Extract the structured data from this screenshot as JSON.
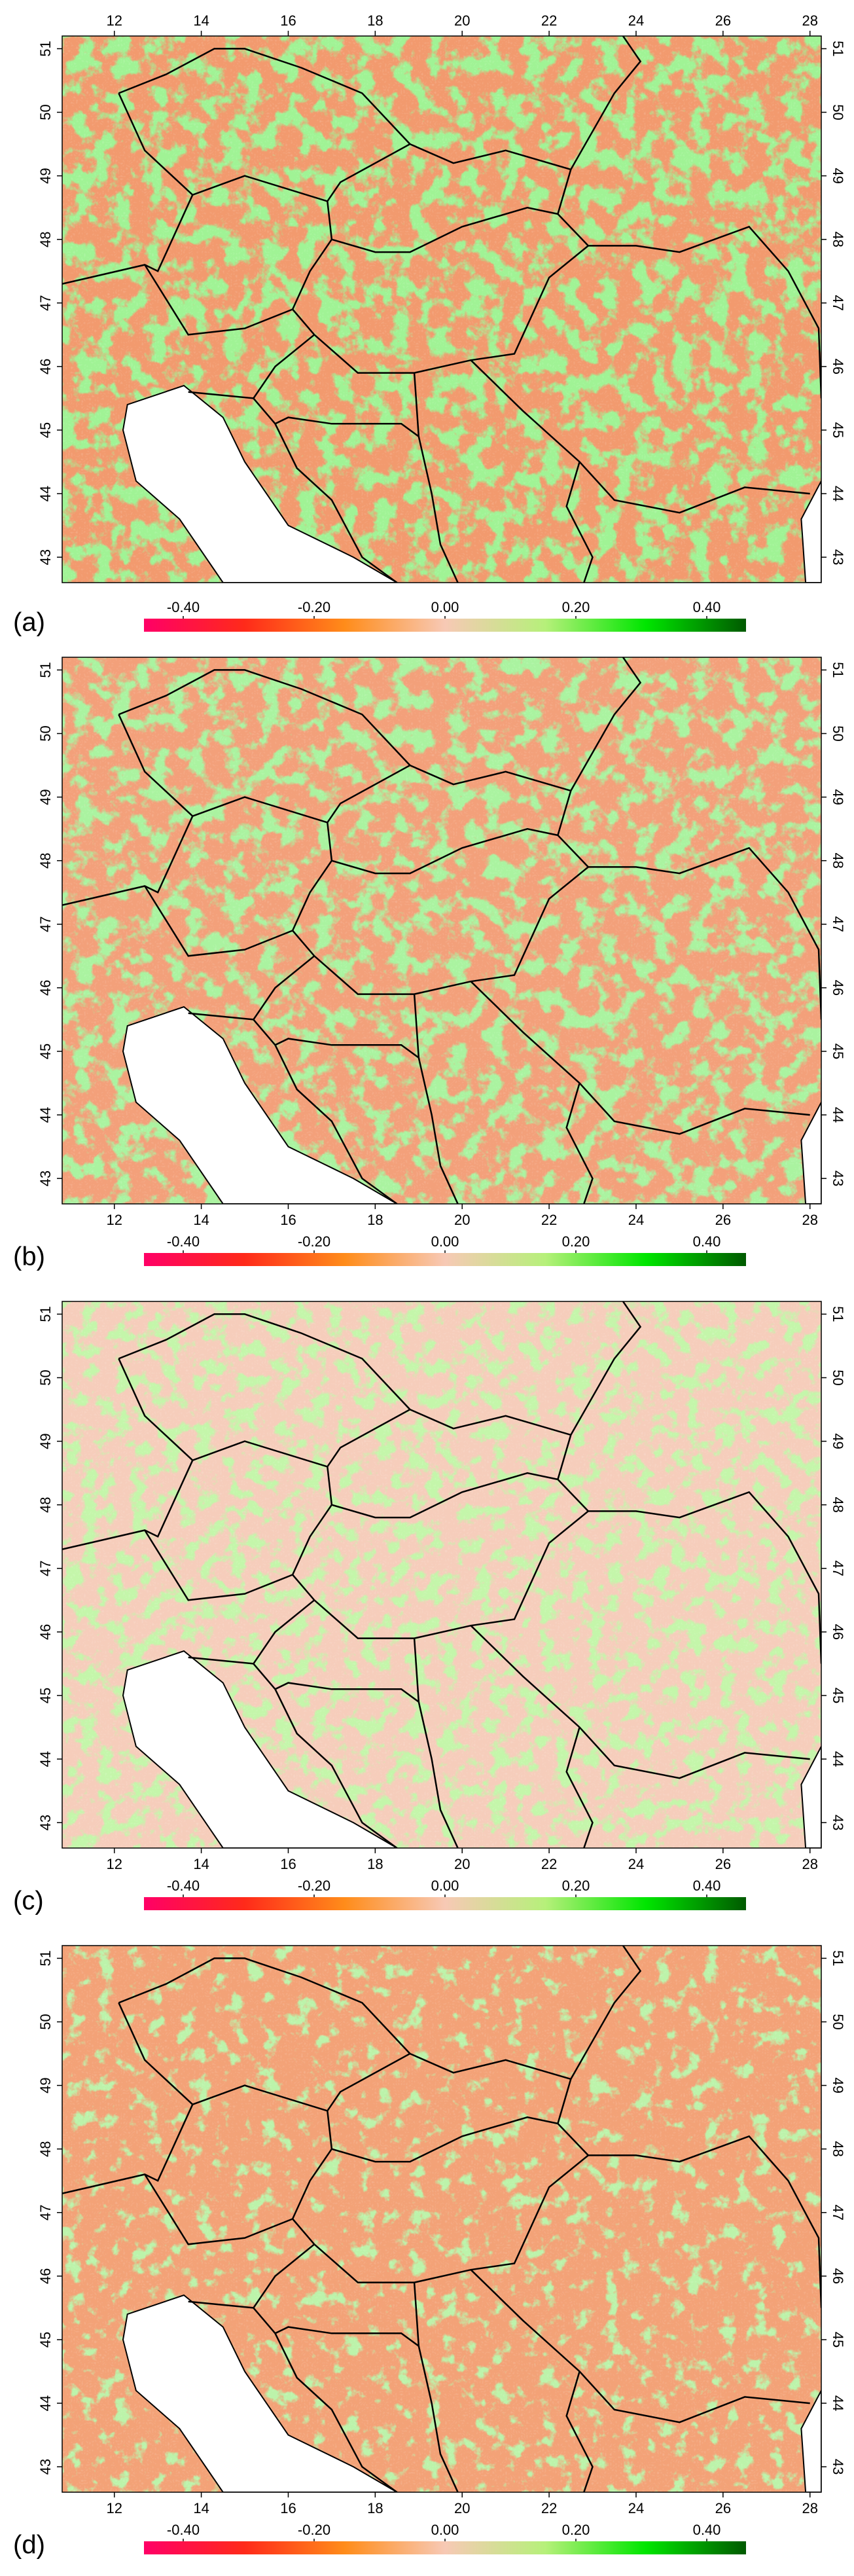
{
  "panels": [
    {
      "label": "(a)",
      "xaxis": "top",
      "xlim": [
        10.8,
        28.26
      ],
      "ylim": [
        42.6,
        51.2
      ],
      "xticks": [
        12,
        14,
        16,
        18,
        20,
        22,
        24,
        26,
        28
      ],
      "yticks": [
        43,
        44,
        45,
        46,
        47,
        48,
        49,
        50,
        51
      ],
      "colorbar": {
        "lim": [
          -0.46,
          0.46
        ],
        "colors": [
          "#ff0066",
          "#ff2a1a",
          "#ff8c1a",
          "#f7c9b5",
          "#b6f07a",
          "#00e600",
          "#005a00"
        ],
        "ticks": [
          {
            "value": -0.4,
            "label": "-0.40"
          },
          {
            "value": -0.2,
            "label": "-0.20"
          },
          {
            "value": 0,
            "label": "0.00"
          },
          {
            "value": 0.2,
            "label": "0.20"
          },
          {
            "value": 0.4,
            "label": "0.40"
          }
        ]
      }
    },
    {
      "label": "(b)",
      "xaxis": "bottom",
      "xlim": [
        10.8,
        28.26
      ],
      "ylim": [
        42.6,
        51.2
      ],
      "xticks": [
        12,
        14,
        16,
        18,
        20,
        22,
        24,
        26,
        28
      ],
      "yticks": [
        43,
        44,
        45,
        46,
        47,
        48,
        49,
        50,
        51
      ],
      "colorbar": {
        "lim": [
          -0.46,
          0.46
        ],
        "colors": [
          "#ff0066",
          "#ff2a1a",
          "#ff8c1a",
          "#f7c9b5",
          "#b6f07a",
          "#00e600",
          "#005a00"
        ],
        "ticks": [
          {
            "value": -0.4,
            "label": "-0.40"
          },
          {
            "value": -0.2,
            "label": "-0.20"
          },
          {
            "value": 0,
            "label": "0.00"
          },
          {
            "value": 0.2,
            "label": "0.20"
          },
          {
            "value": 0.4,
            "label": "0.40"
          }
        ]
      }
    },
    {
      "label": "(c)",
      "xaxis": "bottom",
      "xlim": [
        10.8,
        28.26
      ],
      "ylim": [
        42.6,
        51.2
      ],
      "xticks": [
        12,
        14,
        16,
        18,
        20,
        22,
        24,
        26,
        28
      ],
      "yticks": [
        43,
        44,
        45,
        46,
        47,
        48,
        49,
        50,
        51
      ],
      "colorbar": {
        "lim": [
          -0.46,
          0.46
        ],
        "colors": [
          "#ff0066",
          "#ff2a1a",
          "#ff8c1a",
          "#f7c9b5",
          "#b6f07a",
          "#00e600",
          "#005a00"
        ],
        "ticks": [
          {
            "value": -0.4,
            "label": "-0.40"
          },
          {
            "value": -0.2,
            "label": "-0.20"
          },
          {
            "value": 0,
            "label": "0.00"
          },
          {
            "value": 0.2,
            "label": "0.20"
          },
          {
            "value": 0.4,
            "label": "0.40"
          }
        ]
      }
    },
    {
      "label": "(d)",
      "xaxis": "bottom",
      "xlim": [
        10.8,
        28.26
      ],
      "ylim": [
        42.6,
        51.2
      ],
      "xticks": [
        12,
        14,
        16,
        18,
        20,
        22,
        24,
        26,
        28
      ],
      "yticks": [
        43,
        44,
        45,
        46,
        47,
        48,
        49,
        50,
        51
      ],
      "colorbar": {
        "lim": [
          -0.46,
          0.46
        ],
        "colors": [
          "#ff0066",
          "#ff2a1a",
          "#ff8c1a",
          "#f7c9b5",
          "#b6f07a",
          "#00e600",
          "#005a00"
        ],
        "ticks": [
          {
            "value": -0.4,
            "label": "-0.40"
          },
          {
            "value": -0.2,
            "label": "-0.20"
          },
          {
            "value": 0,
            "label": "0.00"
          },
          {
            "value": 0.2,
            "label": "0.20"
          },
          {
            "value": 0.4,
            "label": "0.40"
          }
        ]
      }
    }
  ]
}
